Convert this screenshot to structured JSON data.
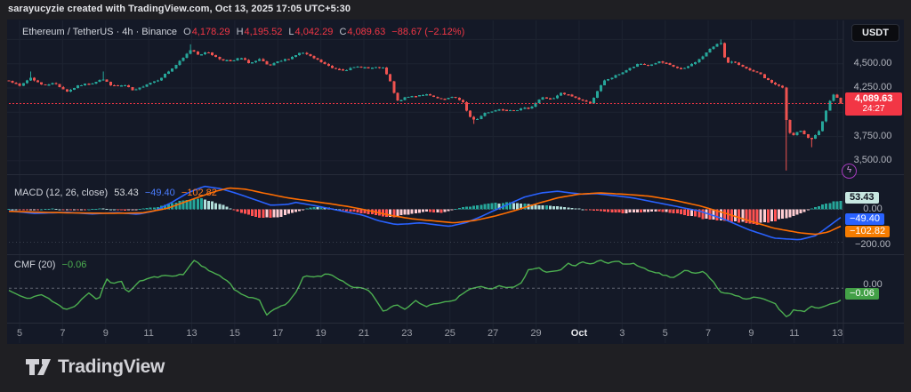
{
  "header": {
    "attribution": "sarayucyzie created with TradingView.com, Oct 13, 2025 17:05 UTC+5:30"
  },
  "symbol_legend": {
    "title": "Ethereum / TetherUS · 4h · Binance",
    "o_label": "O",
    "o": "4,178.29",
    "h_label": "H",
    "h": "4,195.52",
    "l_label": "L",
    "l": "4,042.29",
    "c_label": "C",
    "c": "4,089.63",
    "change": "−88.67 (−2.12%)"
  },
  "price_axis": {
    "currency_button": "USDT",
    "p4500": "4,500.00",
    "p4250": "4,250.00",
    "p3750": "3,750.00",
    "p3500": "3,500.00",
    "last_price": {
      "value": "4,089.63",
      "countdown": "24:27"
    }
  },
  "macd_legend": {
    "title": "MACD (12, 26, close)",
    "hist": "53.43",
    "macd": "−49.40",
    "signal": "−102.82"
  },
  "macd_axis": {
    "hist_badge": "53.43",
    "zero": "0.00",
    "macd_badge": "−49.40",
    "signal_badge": "−102.82",
    "minus200": "−200.00"
  },
  "cmf_legend": {
    "title": "CMF (20)",
    "value": "−0.06"
  },
  "cmf_axis": {
    "zero": "0.00",
    "badge": "−0.06"
  },
  "footer": {
    "brand": "TradingView"
  },
  "flash_glyph": "ϟ",
  "colors": {
    "page_bg": "#1f1f23",
    "chart_bg": "#141927",
    "grid": "#1d2331",
    "separator": "#272c39",
    "up": "#26a69a",
    "down": "#ef5350",
    "last_price_red": "#f23645",
    "macd_line": "#2962ff",
    "signal_line": "#ff6d00",
    "hist_up": "#26a69a",
    "hist_up_faded": "#b2dfdb",
    "hist_dn": "#ff5252",
    "hist_dn_faded": "#ffcdd2",
    "cmf_line": "#4caf50",
    "axis_text": "#b2b5be"
  },
  "chart_data": [
    {
      "type": "candlestick",
      "title": "Ethereum / TetherUS",
      "exchange": "Binance",
      "interval": "4h",
      "last_ohlc": {
        "open": 4178.29,
        "high": 4195.52,
        "low": 4042.29,
        "close": 4089.63,
        "change": -88.67,
        "change_pct": -2.12
      },
      "y_axis": {
        "ticks": [
          4500,
          4250,
          3750,
          3500
        ],
        "gridlines": [
          4750,
          4500,
          4250,
          4000,
          3750,
          3500
        ],
        "last_price": 4089.63,
        "visible_range": [
          3360,
          4950
        ]
      },
      "x_axis": {
        "labels": [
          "5",
          "7",
          "9",
          "11",
          "13",
          "15",
          "17",
          "19",
          "21",
          "23",
          "25",
          "27",
          "29",
          "Oct",
          "3",
          "5",
          "7",
          "9",
          "11",
          "13"
        ],
        "highlight": "Oct"
      },
      "candle_count": 230,
      "close_path": [
        [
          0,
          4330
        ],
        [
          0.013,
          4270
        ],
        [
          0.026,
          4355
        ],
        [
          0.04,
          4280
        ],
        [
          0.055,
          4300
        ],
        [
          0.07,
          4215
        ],
        [
          0.085,
          4280
        ],
        [
          0.1,
          4300
        ],
        [
          0.112,
          4345
        ],
        [
          0.125,
          4270
        ],
        [
          0.14,
          4275
        ],
        [
          0.15,
          4215
        ],
        [
          0.163,
          4280
        ],
        [
          0.18,
          4340
        ],
        [
          0.195,
          4440
        ],
        [
          0.21,
          4560
        ],
        [
          0.219,
          4650
        ],
        [
          0.228,
          4595
        ],
        [
          0.24,
          4620
        ],
        [
          0.252,
          4550
        ],
        [
          0.268,
          4525
        ],
        [
          0.278,
          4560
        ],
        [
          0.29,
          4505
        ],
        [
          0.302,
          4545
        ],
        [
          0.312,
          4475
        ],
        [
          0.324,
          4520
        ],
        [
          0.338,
          4560
        ],
        [
          0.352,
          4620
        ],
        [
          0.362,
          4575
        ],
        [
          0.375,
          4520
        ],
        [
          0.39,
          4450
        ],
        [
          0.405,
          4440
        ],
        [
          0.42,
          4470
        ],
        [
          0.435,
          4455
        ],
        [
          0.449,
          4465
        ],
        [
          0.458,
          4330
        ],
        [
          0.466,
          4110
        ],
        [
          0.48,
          4160
        ],
        [
          0.5,
          4185
        ],
        [
          0.52,
          4130
        ],
        [
          0.535,
          4155
        ],
        [
          0.545,
          4120
        ],
        [
          0.553,
          3955
        ],
        [
          0.562,
          3920
        ],
        [
          0.572,
          3995
        ],
        [
          0.59,
          4030
        ],
        [
          0.61,
          4025
        ],
        [
          0.627,
          4050
        ],
        [
          0.64,
          4150
        ],
        [
          0.655,
          4140
        ],
        [
          0.663,
          4195
        ],
        [
          0.675,
          4170
        ],
        [
          0.69,
          4120
        ],
        [
          0.698,
          4090
        ],
        [
          0.706,
          4190
        ],
        [
          0.715,
          4320
        ],
        [
          0.73,
          4380
        ],
        [
          0.745,
          4445
        ],
        [
          0.758,
          4500
        ],
        [
          0.77,
          4480
        ],
        [
          0.78,
          4520
        ],
        [
          0.79,
          4500
        ],
        [
          0.8,
          4465
        ],
        [
          0.81,
          4440
        ],
        [
          0.82,
          4490
        ],
        [
          0.83,
          4545
        ],
        [
          0.84,
          4625
        ],
        [
          0.85,
          4700
        ],
        [
          0.856,
          4720
        ],
        [
          0.862,
          4500
        ],
        [
          0.872,
          4520
        ],
        [
          0.882,
          4475
        ],
        [
          0.89,
          4430
        ],
        [
          0.902,
          4400
        ],
        [
          0.912,
          4330
        ],
        [
          0.922,
          4285
        ],
        [
          0.93,
          4260
        ],
        [
          0.936,
          3800
        ],
        [
          0.944,
          3755
        ],
        [
          0.95,
          3820
        ],
        [
          0.956,
          3780
        ],
        [
          0.963,
          3705
        ],
        [
          0.968,
          3760
        ],
        [
          0.974,
          3805
        ],
        [
          0.98,
          3950
        ],
        [
          0.986,
          4105
        ],
        [
          0.992,
          4185
        ],
        [
          1,
          4089.63
        ]
      ],
      "wick_spikes": [
        {
          "t": 0.026,
          "high": 4420
        },
        {
          "t": 0.112,
          "high": 4420
        },
        {
          "t": 0.219,
          "high": 4700
        },
        {
          "t": 0.557,
          "low": 3880
        },
        {
          "t": 0.856,
          "high": 4750
        },
        {
          "t": 0.936,
          "low": 3400
        },
        {
          "t": 0.963,
          "low": 3640
        }
      ]
    },
    {
      "type": "macd",
      "params": [
        12,
        26,
        "close"
      ],
      "last": {
        "histogram": 53.43,
        "macd": -49.4,
        "signal": -102.82
      },
      "y_axis": {
        "ticks": [
          0,
          -200
        ]
      },
      "macd_line": [
        [
          0,
          -8
        ],
        [
          0.03,
          -25
        ],
        [
          0.07,
          -18
        ],
        [
          0.1,
          -28
        ],
        [
          0.13,
          -20
        ],
        [
          0.155,
          -30
        ],
        [
          0.175,
          -10
        ],
        [
          0.195,
          40
        ],
        [
          0.215,
          100
        ],
        [
          0.235,
          140
        ],
        [
          0.255,
          125
        ],
        [
          0.275,
          95
        ],
        [
          0.295,
          60
        ],
        [
          0.315,
          25
        ],
        [
          0.335,
          30
        ],
        [
          0.345,
          42
        ],
        [
          0.365,
          25
        ],
        [
          0.385,
          5
        ],
        [
          0.4,
          -10
        ],
        [
          0.425,
          -35
        ],
        [
          0.445,
          -70
        ],
        [
          0.465,
          -92
        ],
        [
          0.48,
          -88
        ],
        [
          0.495,
          -82
        ],
        [
          0.515,
          -95
        ],
        [
          0.53,
          -103
        ],
        [
          0.55,
          -80
        ],
        [
          0.565,
          -50
        ],
        [
          0.58,
          -15
        ],
        [
          0.6,
          30
        ],
        [
          0.62,
          75
        ],
        [
          0.64,
          100
        ],
        [
          0.66,
          110
        ],
        [
          0.675,
          100
        ],
        [
          0.69,
          92
        ],
        [
          0.705,
          96
        ],
        [
          0.72,
          88
        ],
        [
          0.75,
          70
        ],
        [
          0.78,
          40
        ],
        [
          0.81,
          10
        ],
        [
          0.83,
          -10
        ],
        [
          0.86,
          -60
        ],
        [
          0.89,
          -125
        ],
        [
          0.92,
          -175
        ],
        [
          0.95,
          -185
        ],
        [
          0.97,
          -160
        ],
        [
          0.985,
          -105
        ],
        [
          1,
          -49.4
        ]
      ],
      "signal_line": [
        [
          0,
          -12
        ],
        [
          0.04,
          -18
        ],
        [
          0.08,
          -22
        ],
        [
          0.12,
          -24
        ],
        [
          0.16,
          -22
        ],
        [
          0.19,
          5
        ],
        [
          0.22,
          60
        ],
        [
          0.25,
          112
        ],
        [
          0.265,
          130
        ],
        [
          0.285,
          122
        ],
        [
          0.31,
          95
        ],
        [
          0.335,
          70
        ],
        [
          0.36,
          52
        ],
        [
          0.385,
          35
        ],
        [
          0.41,
          15
        ],
        [
          0.435,
          -10
        ],
        [
          0.46,
          -38
        ],
        [
          0.485,
          -58
        ],
        [
          0.51,
          -70
        ],
        [
          0.535,
          -82
        ],
        [
          0.56,
          -68
        ],
        [
          0.585,
          -40
        ],
        [
          0.61,
          -5
        ],
        [
          0.635,
          35
        ],
        [
          0.66,
          70
        ],
        [
          0.685,
          92
        ],
        [
          0.71,
          100
        ],
        [
          0.74,
          92
        ],
        [
          0.77,
          80
        ],
        [
          0.8,
          55
        ],
        [
          0.83,
          22
        ],
        [
          0.86,
          -22
        ],
        [
          0.89,
          -70
        ],
        [
          0.92,
          -115
        ],
        [
          0.95,
          -142
        ],
        [
          0.97,
          -152
        ],
        [
          0.985,
          -138
        ],
        [
          1,
          -102.82
        ]
      ],
      "histogram": [
        [
          0,
          3
        ],
        [
          0.02,
          -4
        ],
        [
          0.05,
          4
        ],
        [
          0.08,
          -4
        ],
        [
          0.11,
          5
        ],
        [
          0.14,
          -6
        ],
        [
          0.17,
          8
        ],
        [
          0.19,
          25
        ],
        [
          0.21,
          55
        ],
        [
          0.23,
          68
        ],
        [
          0.25,
          40
        ],
        [
          0.265,
          10
        ],
        [
          0.28,
          -25
        ],
        [
          0.3,
          -48
        ],
        [
          0.32,
          -55
        ],
        [
          0.335,
          -30
        ],
        [
          0.35,
          -10
        ],
        [
          0.36,
          8
        ],
        [
          0.375,
          16
        ],
        [
          0.39,
          6
        ],
        [
          0.405,
          -8
        ],
        [
          0.42,
          -20
        ],
        [
          0.44,
          -35
        ],
        [
          0.46,
          -48
        ],
        [
          0.48,
          -30
        ],
        [
          0.5,
          -16
        ],
        [
          0.52,
          -20
        ],
        [
          0.54,
          6
        ],
        [
          0.56,
          22
        ],
        [
          0.58,
          35
        ],
        [
          0.6,
          42
        ],
        [
          0.62,
          36
        ],
        [
          0.64,
          26
        ],
        [
          0.66,
          16
        ],
        [
          0.68,
          8
        ],
        [
          0.7,
          -6
        ],
        [
          0.72,
          -16
        ],
        [
          0.74,
          -24
        ],
        [
          0.76,
          -18
        ],
        [
          0.78,
          -12
        ],
        [
          0.8,
          -22
        ],
        [
          0.82,
          -42
        ],
        [
          0.84,
          -60
        ],
        [
          0.86,
          -70
        ],
        [
          0.88,
          -78
        ],
        [
          0.9,
          -90
        ],
        [
          0.92,
          -70
        ],
        [
          0.94,
          -45
        ],
        [
          0.955,
          -20
        ],
        [
          0.965,
          6
        ],
        [
          0.975,
          22
        ],
        [
          0.985,
          38
        ],
        [
          1,
          53.43
        ]
      ]
    },
    {
      "type": "line",
      "name": "CMF",
      "params": [
        20
      ],
      "last": -0.06,
      "zero_line": true,
      "values": [
        [
          0,
          -0.01
        ],
        [
          0.02,
          -0.05
        ],
        [
          0.04,
          -0.03
        ],
        [
          0.055,
          -0.07
        ],
        [
          0.068,
          -0.1
        ],
        [
          0.08,
          -0.085
        ],
        [
          0.095,
          -0.02
        ],
        [
          0.108,
          -0.06
        ],
        [
          0.117,
          0.045
        ],
        [
          0.125,
          0.02
        ],
        [
          0.135,
          0.04
        ],
        [
          0.142,
          -0.03
        ],
        [
          0.155,
          0.03
        ],
        [
          0.17,
          0.05
        ],
        [
          0.19,
          0.06
        ],
        [
          0.21,
          0.065
        ],
        [
          0.222,
          0.135
        ],
        [
          0.235,
          0.1
        ],
        [
          0.25,
          0.065
        ],
        [
          0.265,
          0.03
        ],
        [
          0.272,
          -0.01
        ],
        [
          0.285,
          -0.04
        ],
        [
          0.3,
          -0.05
        ],
        [
          0.31,
          -0.125
        ],
        [
          0.325,
          -0.085
        ],
        [
          0.335,
          -0.075
        ],
        [
          0.345,
          -0.02
        ],
        [
          0.355,
          0.06
        ],
        [
          0.365,
          0.055
        ],
        [
          0.375,
          0.06
        ],
        [
          0.385,
          0.07
        ],
        [
          0.395,
          0.05
        ],
        [
          0.41,
          0.01
        ],
        [
          0.425,
          0
        ],
        [
          0.435,
          -0.02
        ],
        [
          0.45,
          -0.11
        ],
        [
          0.465,
          -0.08
        ],
        [
          0.475,
          -0.1
        ],
        [
          0.49,
          -0.06
        ],
        [
          0.5,
          -0.09
        ],
        [
          0.515,
          -0.07
        ],
        [
          0.535,
          -0.06
        ],
        [
          0.55,
          -0.01
        ],
        [
          0.565,
          0.01
        ],
        [
          0.575,
          -0.005
        ],
        [
          0.59,
          0.01
        ],
        [
          0.6,
          0
        ],
        [
          0.615,
          0.02
        ],
        [
          0.625,
          0.09
        ],
        [
          0.635,
          0.1
        ],
        [
          0.645,
          0.075
        ],
        [
          0.66,
          0.08
        ],
        [
          0.672,
          0.12
        ],
        [
          0.68,
          0.105
        ],
        [
          0.69,
          0.13
        ],
        [
          0.7,
          0.115
        ],
        [
          0.71,
          0.135
        ],
        [
          0.72,
          0.12
        ],
        [
          0.73,
          0.13
        ],
        [
          0.74,
          0.115
        ],
        [
          0.75,
          0.12
        ],
        [
          0.76,
          0.1
        ],
        [
          0.775,
          0.08
        ],
        [
          0.79,
          0.06
        ],
        [
          0.8,
          0.05
        ],
        [
          0.815,
          0.09
        ],
        [
          0.825,
          0.07
        ],
        [
          0.835,
          0.085
        ],
        [
          0.845,
          0.04
        ],
        [
          0.855,
          -0.02
        ],
        [
          0.87,
          -0.03
        ],
        [
          0.885,
          -0.05
        ],
        [
          0.9,
          -0.04
        ],
        [
          0.91,
          -0.06
        ],
        [
          0.92,
          -0.07
        ],
        [
          0.935,
          -0.14
        ],
        [
          0.945,
          -0.1
        ],
        [
          0.955,
          -0.115
        ],
        [
          0.965,
          -0.09
        ],
        [
          0.975,
          -0.095
        ],
        [
          0.985,
          -0.075
        ],
        [
          1,
          -0.06
        ]
      ]
    }
  ]
}
